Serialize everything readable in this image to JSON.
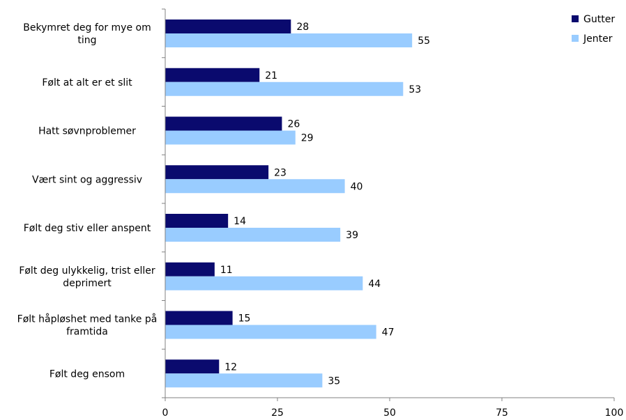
{
  "chart_data": {
    "type": "bar",
    "orientation": "horizontal",
    "categories": [
      [
        "Bekymret deg for mye om",
        "ting"
      ],
      [
        "Følt at alt er et slit"
      ],
      [
        "Hatt søvnproblemer"
      ],
      [
        "Vært sint og aggressiv"
      ],
      [
        "Følt deg stiv eller anspent"
      ],
      [
        "Følt deg ulykkelig, trist eller",
        "deprimert"
      ],
      [
        "Følt håpløshet med tanke på",
        "framtida"
      ],
      [
        "Følt deg ensom"
      ]
    ],
    "series": [
      {
        "name": "Gutter",
        "color": "#0a0a6e",
        "values": [
          28,
          21,
          26,
          23,
          14,
          11,
          15,
          12
        ]
      },
      {
        "name": "Jenter",
        "color": "#99ccff",
        "values": [
          55,
          53,
          29,
          40,
          39,
          44,
          47,
          35
        ]
      }
    ],
    "xlim": [
      0,
      100
    ],
    "xticks": [
      "0",
      "25",
      "50",
      "75",
      "100"
    ],
    "grid": false,
    "legend": "top-right"
  }
}
